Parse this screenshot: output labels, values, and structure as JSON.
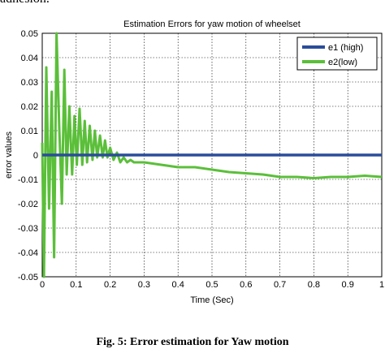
{
  "page": {
    "top_fragment": "adhesion.",
    "caption": "Fig. 5: Error estimation for Yaw motion"
  },
  "chart_data": {
    "type": "line",
    "title": "Estimation Errors for yaw motion of wheelset",
    "xlabel": "Time (Sec)",
    "ylabel": "error values",
    "xlim": [
      0,
      1
    ],
    "ylim": [
      -0.05,
      0.05
    ],
    "grid": true,
    "legend_position": "top-right",
    "x_ticks": [
      "0",
      "0.1",
      "0.2",
      "0.3",
      "0.4",
      "0.5",
      "0.6",
      "0.7",
      "0.8",
      "0.9",
      "1"
    ],
    "y_ticks": [
      "0.05",
      "0.04",
      "0.03",
      "0.02",
      "0.01",
      "0",
      "-0.01",
      "-0.02",
      "-0.03",
      "-0.04",
      "-0.05"
    ],
    "series": [
      {
        "name": "e1 (high)",
        "color": "#2a4d9b",
        "x": [
          0,
          0.1,
          0.2,
          0.3,
          0.4,
          0.5,
          0.6,
          0.7,
          0.8,
          0.9,
          1.0
        ],
        "y": [
          0,
          0,
          0,
          0,
          0,
          0,
          0,
          0,
          0,
          0,
          0
        ]
      },
      {
        "name": "e2(low)",
        "color": "#5bbf3a",
        "x": [
          0,
          0.005,
          0.012,
          0.02,
          0.028,
          0.035,
          0.042,
          0.05,
          0.058,
          0.065,
          0.072,
          0.08,
          0.088,
          0.095,
          0.102,
          0.11,
          0.118,
          0.125,
          0.132,
          0.14,
          0.148,
          0.155,
          0.162,
          0.17,
          0.178,
          0.185,
          0.192,
          0.2,
          0.21,
          0.22,
          0.23,
          0.24,
          0.25,
          0.26,
          0.27,
          0.28,
          0.3,
          0.35,
          0.4,
          0.45,
          0.5,
          0.55,
          0.6,
          0.65,
          0.7,
          0.75,
          0.8,
          0.85,
          0.9,
          0.95,
          1.0
        ],
        "y": [
          0.005,
          -0.05,
          0.036,
          -0.022,
          0.026,
          -0.042,
          0.05,
          0.012,
          -0.02,
          0.035,
          -0.008,
          0.02,
          -0.008,
          0.016,
          -0.004,
          0.019,
          -0.004,
          0.014,
          -0.003,
          0.012,
          -0.002,
          0.01,
          -0.001,
          0.008,
          -0.001,
          0.006,
          -0.001,
          0.003,
          -0.002,
          0.001,
          -0.003,
          -0.001,
          -0.003,
          -0.002,
          -0.003,
          -0.003,
          -0.003,
          -0.004,
          -0.005,
          -0.005,
          -0.006,
          -0.007,
          -0.0075,
          -0.008,
          -0.009,
          -0.009,
          -0.0095,
          -0.009,
          -0.009,
          -0.0085,
          -0.009
        ]
      }
    ]
  }
}
